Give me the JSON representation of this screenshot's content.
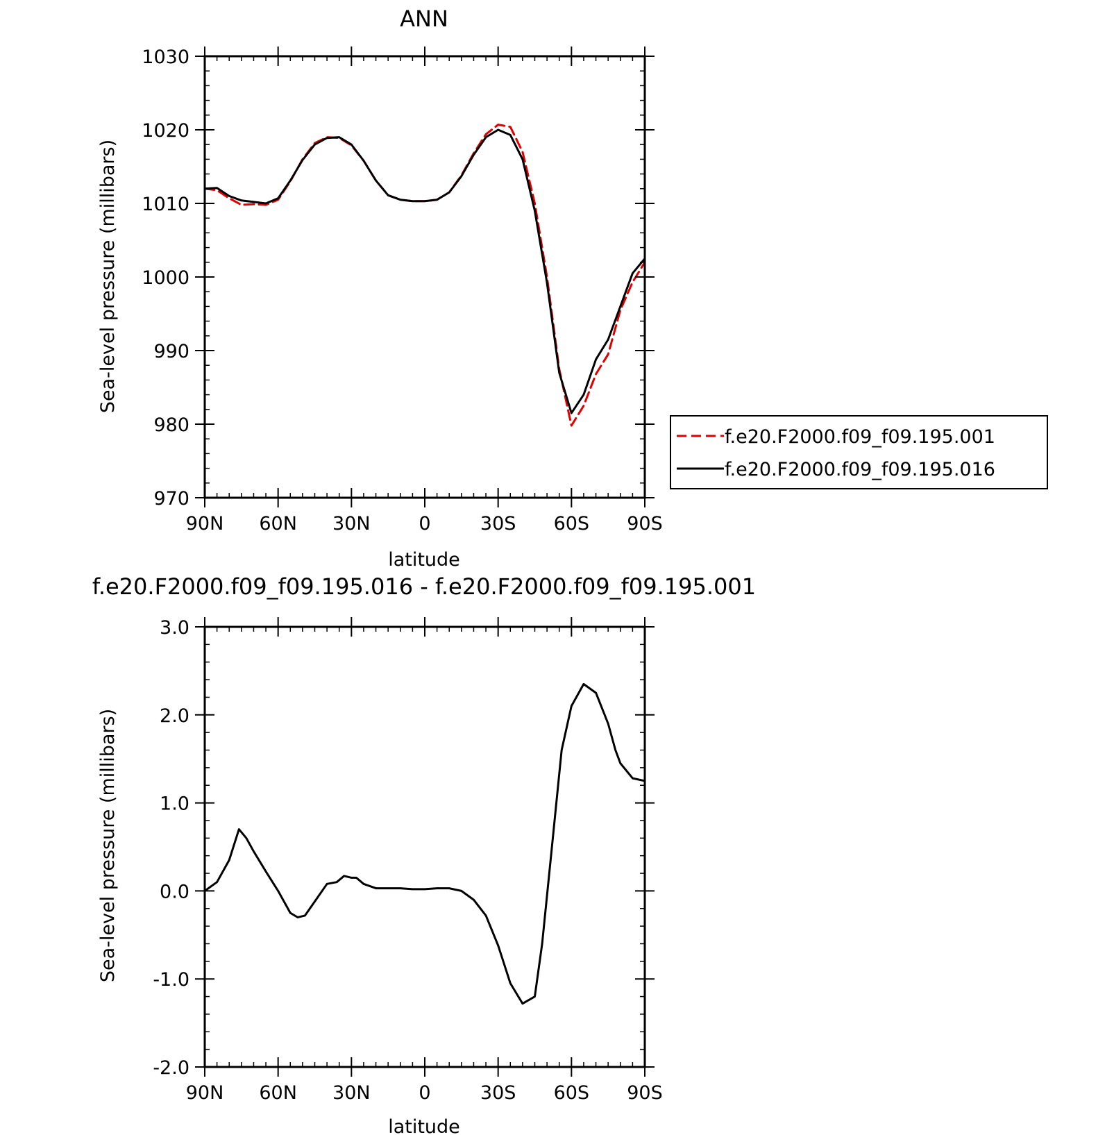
{
  "chart_data": [
    {
      "type": "line",
      "title": "ANN",
      "xlabel": "latitude",
      "ylabel": "Sea-level pressure (millibars)",
      "xlim": [
        90,
        -90
      ],
      "ylim": [
        970,
        1030
      ],
      "x_ticks": [
        90,
        60,
        30,
        0,
        -30,
        -60,
        -90
      ],
      "x_tick_labels": [
        "90N",
        "60N",
        "30N",
        "0",
        "30S",
        "60S",
        "90S"
      ],
      "y_ticks": [
        970,
        980,
        990,
        1000,
        1010,
        1020,
        1030
      ],
      "y_tick_labels": [
        "970",
        "980",
        "990",
        "1000",
        "1010",
        "1020",
        "1030"
      ],
      "legend_position": "right",
      "series": [
        {
          "name": "f.e20.F2000.f09_f09.195.001",
          "color": "#e00000",
          "dash": "dashed",
          "x": [
            90,
            85,
            80,
            75,
            70,
            65,
            60,
            55,
            50,
            45,
            40,
            35,
            30,
            25,
            20,
            15,
            10,
            5,
            0,
            -5,
            -10,
            -15,
            -20,
            -25,
            -30,
            -35,
            -40,
            -45,
            -50,
            -55,
            -60,
            -65,
            -70,
            -75,
            -80,
            -85,
            -90
          ],
          "y": [
            1012.0,
            1011.8,
            1010.7,
            1009.8,
            1009.9,
            1009.8,
            1010.5,
            1013.0,
            1016.0,
            1018.2,
            1019.0,
            1018.9,
            1017.9,
            1015.8,
            1013.1,
            1011.1,
            1010.5,
            1010.3,
            1010.3,
            1010.5,
            1011.5,
            1013.8,
            1016.8,
            1019.4,
            1020.7,
            1020.4,
            1017.0,
            1010.0,
            1000.0,
            987.5,
            979.8,
            982.5,
            986.8,
            989.5,
            995.5,
            999.3,
            1002.0
          ]
        },
        {
          "name": "f.e20.F2000.f09_f09.195.016",
          "color": "#000000",
          "dash": "solid",
          "x": [
            90,
            85,
            80,
            75,
            70,
            65,
            60,
            55,
            50,
            45,
            40,
            35,
            30,
            25,
            20,
            15,
            10,
            5,
            0,
            -5,
            -10,
            -15,
            -20,
            -25,
            -30,
            -35,
            -40,
            -45,
            -50,
            -55,
            -60,
            -65,
            -70,
            -75,
            -80,
            -85,
            -90
          ],
          "y": [
            1012.0,
            1012.1,
            1011.0,
            1010.4,
            1010.2,
            1010.0,
            1010.7,
            1013.1,
            1015.9,
            1018.0,
            1018.9,
            1019.0,
            1018.0,
            1015.8,
            1013.1,
            1011.1,
            1010.5,
            1010.3,
            1010.3,
            1010.5,
            1011.5,
            1013.7,
            1016.6,
            1019.0,
            1020.0,
            1019.3,
            1016.0,
            1009.0,
            999.2,
            987.0,
            981.5,
            984.0,
            988.8,
            991.5,
            996.0,
            1000.5,
            1002.5
          ]
        }
      ]
    },
    {
      "type": "line",
      "title": "f.e20.F2000.f09_f09.195.016 - f.e20.F2000.f09_f09.195.001",
      "xlabel": "latitude",
      "ylabel": "Sea-level pressure (millibars)",
      "xlim": [
        90,
        -90
      ],
      "ylim": [
        -2.0,
        3.0
      ],
      "x_ticks": [
        90,
        60,
        30,
        0,
        -30,
        -60,
        -90
      ],
      "x_tick_labels": [
        "90N",
        "60N",
        "30N",
        "0",
        "30S",
        "60S",
        "90S"
      ],
      "y_ticks": [
        -2.0,
        -1.0,
        0.0,
        1.0,
        2.0,
        3.0
      ],
      "y_tick_labels": [
        "-2.0",
        "-1.0",
        "0.0",
        "1.0",
        "2.0",
        "3.0"
      ],
      "series": [
        {
          "color": "#000000",
          "dash": "solid",
          "x": [
            90,
            85,
            80,
            76,
            73,
            70,
            65,
            60,
            55,
            52,
            49,
            45,
            40,
            36,
            33,
            30,
            28,
            25,
            20,
            15,
            10,
            5,
            0,
            -5,
            -10,
            -15,
            -20,
            -25,
            -30,
            -35,
            -40,
            -45,
            -48,
            -52,
            -56,
            -60,
            -65,
            -70,
            -75,
            -78,
            -80,
            -85,
            -90
          ],
          "y": [
            0.0,
            0.1,
            0.35,
            0.7,
            0.6,
            0.45,
            0.22,
            0.0,
            -0.25,
            -0.3,
            -0.28,
            -0.12,
            0.08,
            0.1,
            0.17,
            0.15,
            0.15,
            0.08,
            0.03,
            0.03,
            0.03,
            0.02,
            0.02,
            0.03,
            0.03,
            0.0,
            -0.1,
            -0.28,
            -0.62,
            -1.05,
            -1.28,
            -1.2,
            -0.6,
            0.5,
            1.6,
            2.1,
            2.35,
            2.25,
            1.9,
            1.6,
            1.45,
            1.28,
            1.25
          ]
        }
      ]
    }
  ]
}
